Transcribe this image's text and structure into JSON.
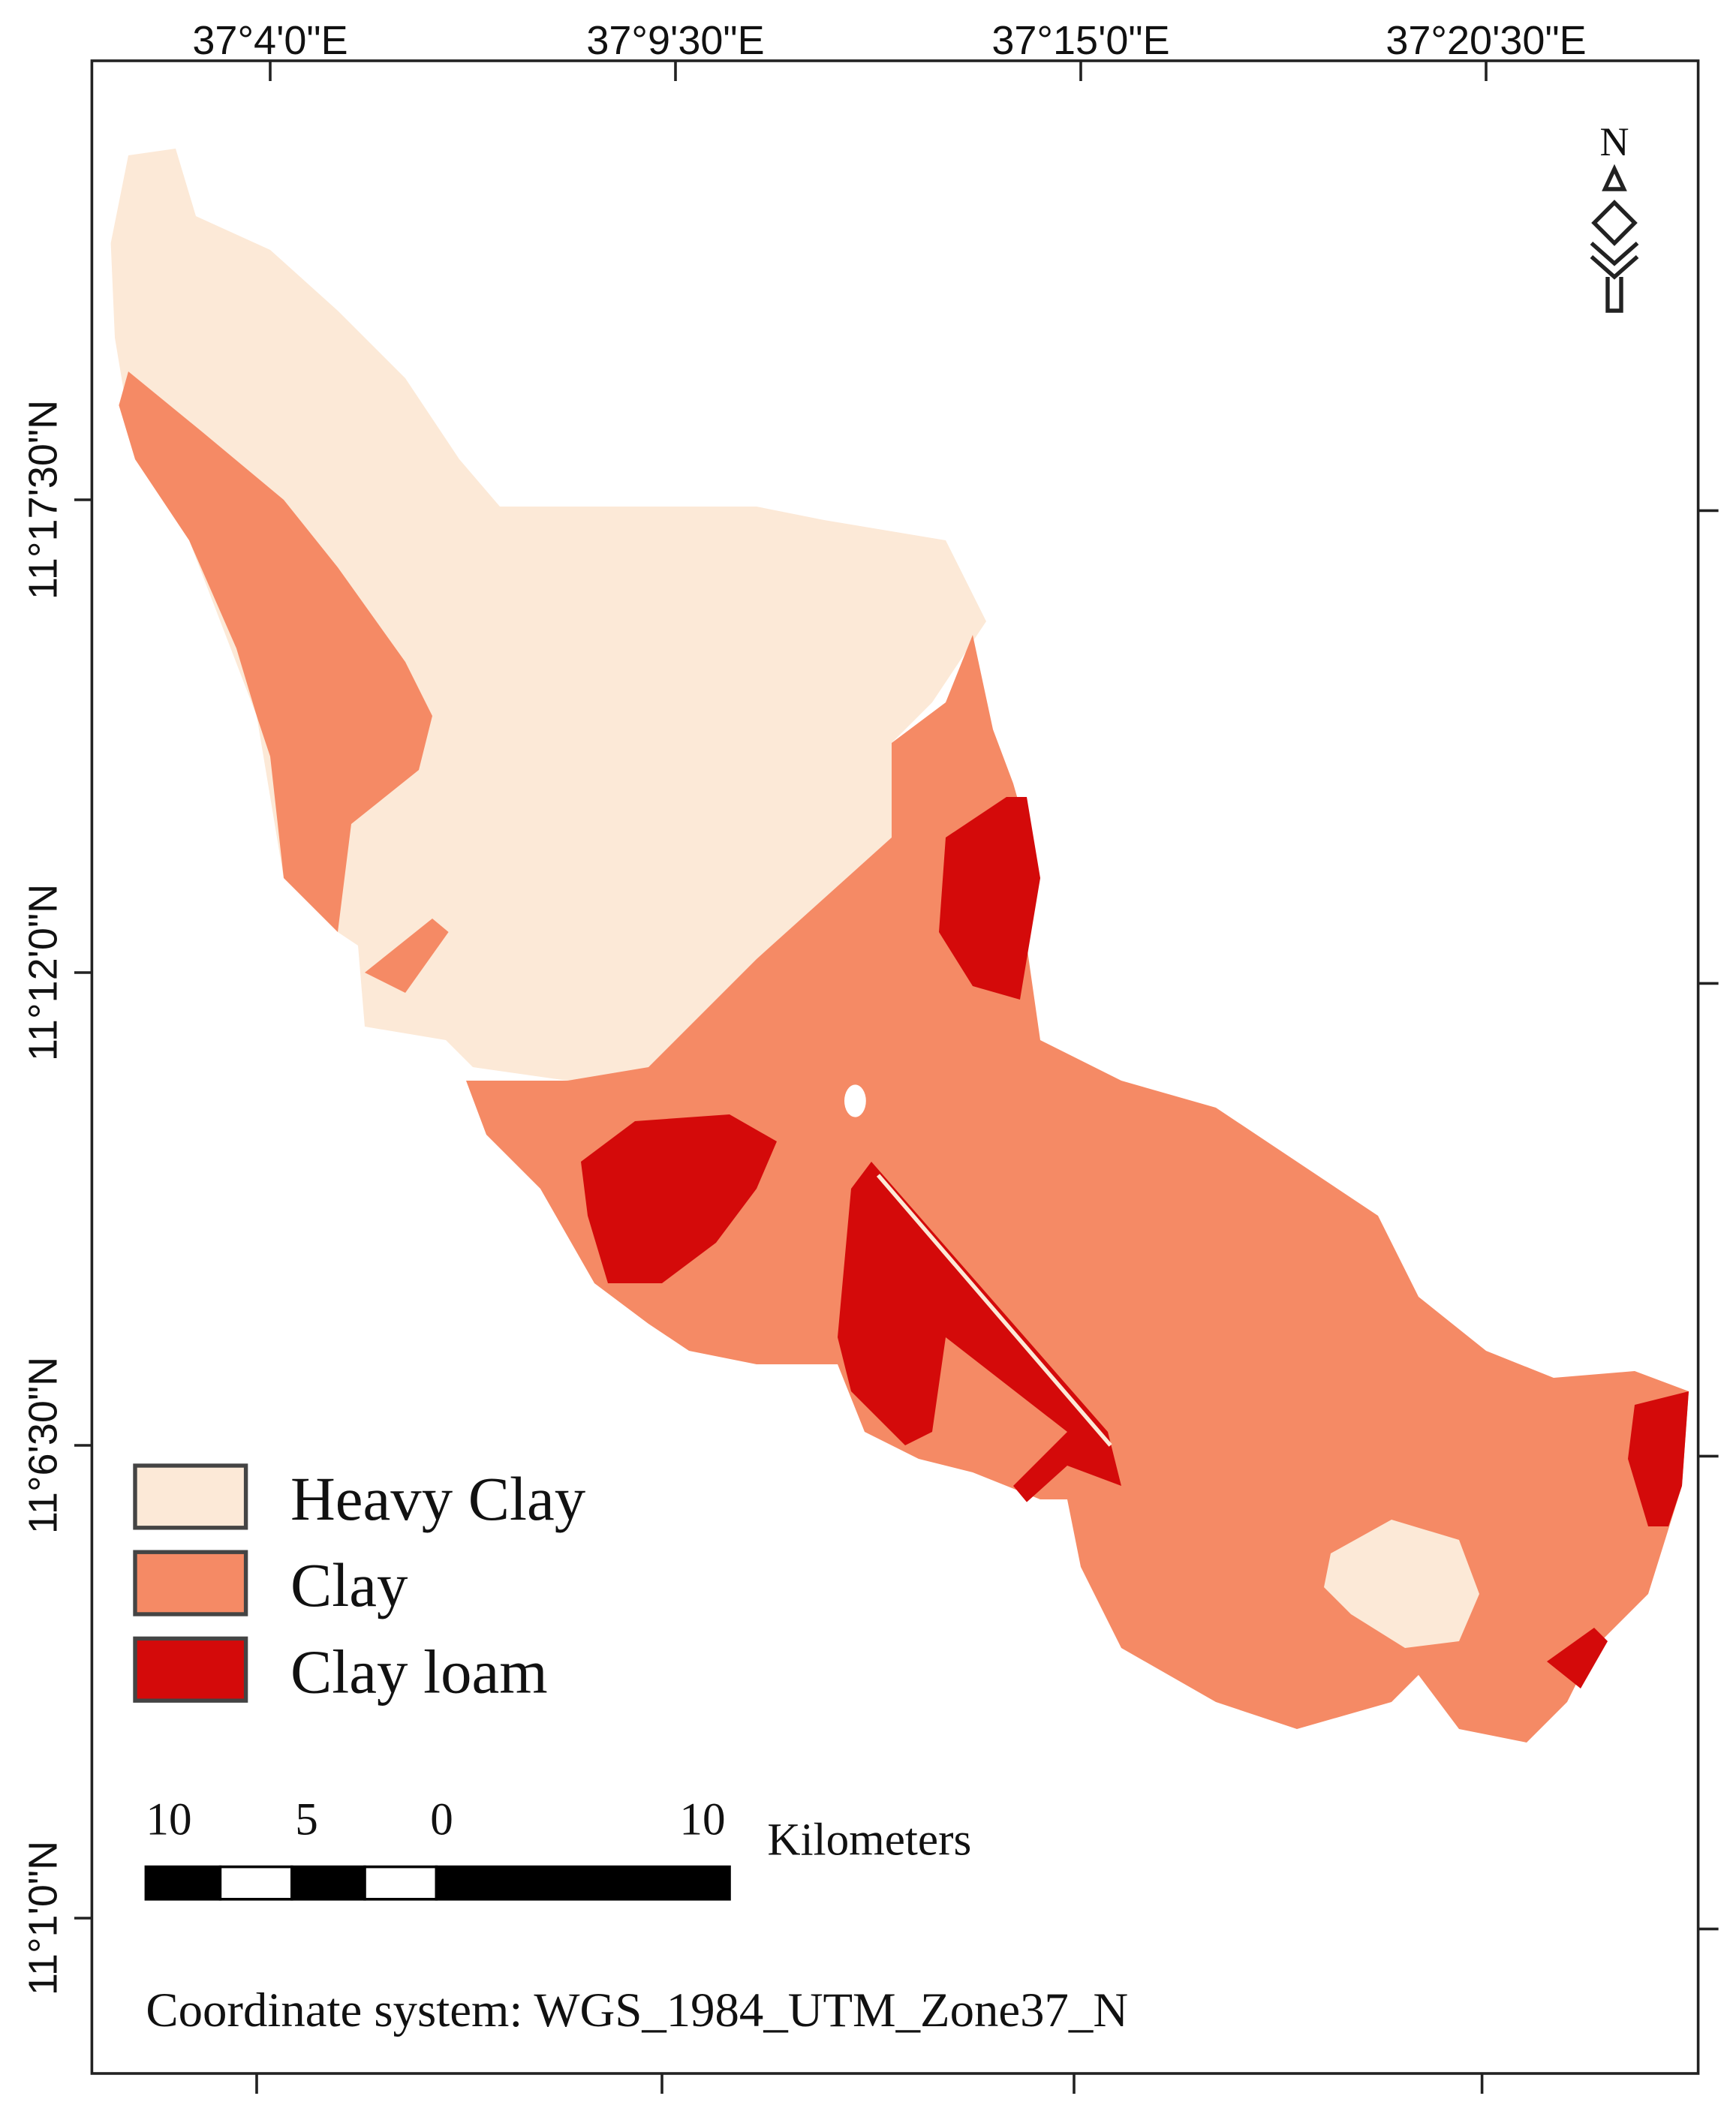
{
  "graticule": {
    "longitude_labels": [
      "37°4'0\"E",
      "37°9'30\"E",
      "37°15'0\"E",
      "37°20'30\"E"
    ],
    "latitude_labels": [
      "11°17'30\"N",
      "11°12'0\"N",
      "11°6'30\"N",
      "11°1'0\"N"
    ]
  },
  "north_arrow": "N",
  "legend": [
    {
      "label": "Heavy Clay",
      "color": "#fce9d7"
    },
    {
      "label": "Clay",
      "color": "#f58a65"
    },
    {
      "label": "Clay loam",
      "color": "#d40a0a"
    }
  ],
  "scale_bar": {
    "labels": [
      "10",
      "5",
      "0",
      "10"
    ],
    "unit": "Kilometers"
  },
  "coordinate_system": "Coordinate system: WGS_1984_UTM_Zone37_N"
}
